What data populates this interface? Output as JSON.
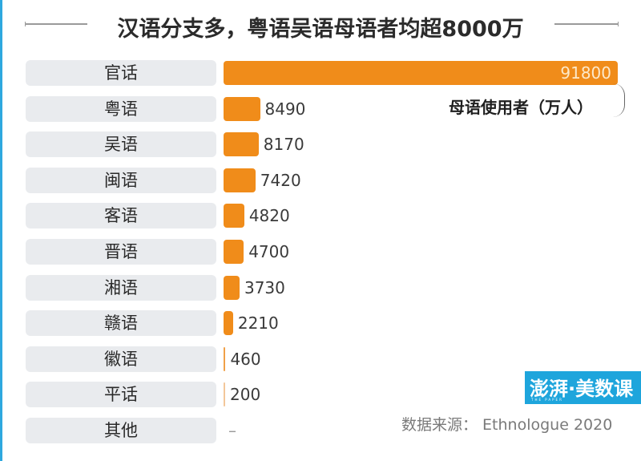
{
  "title": "汉语分支多，粤语吴语母语者均超8000万",
  "unit_note": "母语使用者（万人）",
  "source": "数据来源：  Ethnologue 2020",
  "logo": {
    "text": "澎湃·美数课",
    "sub": "THE PAPER"
  },
  "colors": {
    "bar": "#f08c1a",
    "label_bg": "#e9ebee",
    "accent_border": "#2ea8df",
    "logo_bg": "#1ea5dc"
  },
  "rows": [
    {
      "label": "官话",
      "value_text": "91800"
    },
    {
      "label": "粤语",
      "value_text": "8490"
    },
    {
      "label": "吴语",
      "value_text": "8170"
    },
    {
      "label": "闽语",
      "value_text": "7420"
    },
    {
      "label": "客语",
      "value_text": "4820"
    },
    {
      "label": "晋语",
      "value_text": "4700"
    },
    {
      "label": "湘语",
      "value_text": "3730"
    },
    {
      "label": "赣语",
      "value_text": "2210"
    },
    {
      "label": "徽语",
      "value_text": "460"
    },
    {
      "label": "平话",
      "value_text": "200"
    },
    {
      "label": "其他",
      "value_text": "–"
    }
  ],
  "chart_data": {
    "type": "bar",
    "orientation": "horizontal",
    "title": "汉语分支多，粤语吴语母语者均超8000万",
    "xlabel": "母语使用者（万人）",
    "ylabel": "",
    "categories": [
      "官话",
      "粤语",
      "吴语",
      "闽语",
      "客语",
      "晋语",
      "湘语",
      "赣语",
      "徽语",
      "平话",
      "其他"
    ],
    "values": [
      91800,
      8490,
      8170,
      7420,
      4820,
      4700,
      3730,
      2210,
      460,
      200,
      null
    ],
    "source": "Ethnologue 2020",
    "grid": false,
    "legend": null
  }
}
